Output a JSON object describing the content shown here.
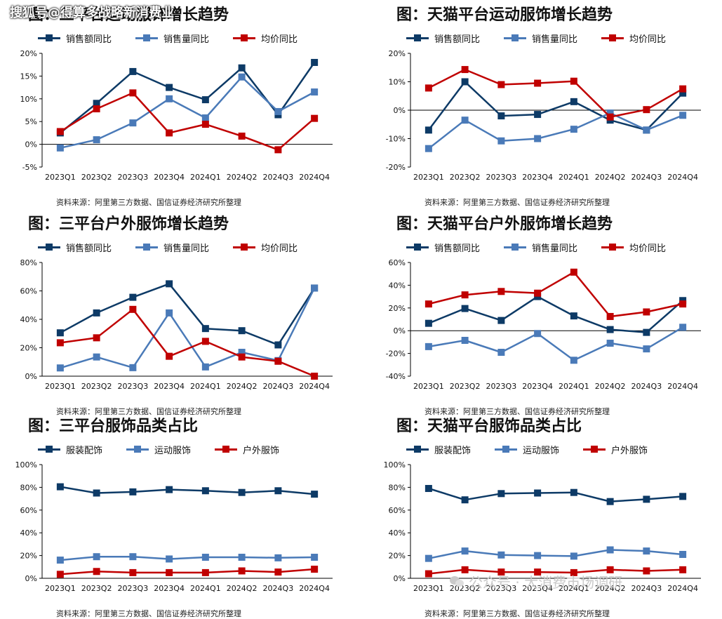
{
  "watermarks": {
    "top": "搜狐号@得算多战略新消费业",
    "bottom": "公众号 · 大消费市场调研"
  },
  "charts": [
    {
      "title": "图：三平台运动服饰增长趋势",
      "source": "资料来源：阿里第三方数据、国信证券经济研究所整理"
    },
    {
      "title": "图：天猫平台运动服饰增长趋势",
      "source": "资料来源：阿里第三方数据、国信证券经济研究所整理"
    },
    {
      "title": "图：三平台户外服饰增长趋势",
      "source": "资料来源：阿里第三方数据、国信证券经济研究所整理"
    },
    {
      "title": "图：天猫平台户外服饰增长趋势",
      "source": "资料来源：阿里第三方数据、国信证券经济研究所整理"
    },
    {
      "title": "图：三平台服饰品类占比",
      "source": "资料来源：阿里第三方数据、国信证券经济研究所整理"
    },
    {
      "title": "图：天猫平台服饰品类占比",
      "source": "资料来源：阿里第三方数据、国信证券经济研究所整理"
    }
  ],
  "chart_data": [
    {
      "type": "line",
      "title": "图：三平台运动服饰增长趋势",
      "categories": [
        "2023Q1",
        "2023Q2",
        "2023Q3",
        "2023Q4",
        "2024Q1",
        "2024Q2",
        "2024Q3",
        "2024Q4"
      ],
      "ylim": [
        -5,
        20
      ],
      "yticks": [
        -5,
        0,
        5,
        10,
        15,
        20
      ],
      "yunit": "%",
      "series": [
        {
          "name": "销售额同比",
          "color": "#0d3a66",
          "values": [
            2.5,
            9,
            16,
            12.5,
            9.8,
            16.8,
            6.5,
            18
          ]
        },
        {
          "name": "销售量同比",
          "color": "#4a7ab8",
          "values": [
            -0.8,
            1,
            4.7,
            10,
            5.8,
            14.8,
            7.2,
            11.5
          ]
        },
        {
          "name": "均价同比",
          "color": "#c00000",
          "values": [
            2.8,
            7.8,
            11.3,
            2.5,
            4.4,
            1.8,
            -1.2,
            5.7
          ]
        }
      ],
      "xlabel": "",
      "ylabel": ""
    },
    {
      "type": "line",
      "title": "图：天猫平台运动服饰增长趋势",
      "categories": [
        "2023Q1",
        "2023Q2",
        "2023Q3",
        "2023Q4",
        "2024Q1",
        "2024Q2",
        "2024Q3",
        "2024Q4"
      ],
      "ylim": [
        -20,
        20
      ],
      "yticks": [
        -20,
        -10,
        0,
        10,
        20
      ],
      "yunit": "%",
      "series": [
        {
          "name": "销售额同比",
          "color": "#0d3a66",
          "values": [
            -7,
            10,
            -2,
            -1.5,
            3,
            -3.5,
            -7,
            6
          ]
        },
        {
          "name": "销售量同比",
          "color": "#4a7ab8",
          "values": [
            -13.5,
            -3.5,
            -10.8,
            -10,
            -6.7,
            -1,
            -7,
            -1.8
          ]
        },
        {
          "name": "均价同比",
          "color": "#c00000",
          "values": [
            7.8,
            14.3,
            9,
            9.5,
            10.2,
            -2.4,
            0.2,
            7.5
          ]
        }
      ],
      "xlabel": "",
      "ylabel": ""
    },
    {
      "type": "line",
      "title": "图：三平台户外服饰增长趋势",
      "categories": [
        "2023Q1",
        "2023Q2",
        "2023Q3",
        "2023Q4",
        "2024Q1",
        "2024Q2",
        "2024Q3",
        "2024Q4"
      ],
      "ylim": [
        0,
        80
      ],
      "yticks": [
        0,
        20,
        40,
        60,
        80
      ],
      "yunit": "%",
      "series": [
        {
          "name": "销售额同比",
          "color": "#0d3a66",
          "values": [
            30.5,
            44.5,
            55.5,
            65,
            33.5,
            32,
            22,
            62
          ]
        },
        {
          "name": "销售量同比",
          "color": "#4a7ab8",
          "values": [
            5.8,
            13.5,
            6,
            44.5,
            6.5,
            16.8,
            11,
            62
          ]
        },
        {
          "name": "均价同比",
          "color": "#c00000",
          "values": [
            23.5,
            27,
            47,
            14,
            24.5,
            13.5,
            10.5,
            0
          ]
        }
      ],
      "xlabel": "",
      "ylabel": ""
    },
    {
      "type": "line",
      "title": "图：天猫平台户外服饰增长趋势",
      "categories": [
        "2023Q1",
        "2023Q2",
        "2023Q3",
        "2023Q4",
        "2024Q1",
        "2024Q2",
        "2024Q3",
        "2024Q4"
      ],
      "ylim": [
        -40,
        60
      ],
      "yticks": [
        -40,
        -20,
        0,
        20,
        40,
        60
      ],
      "yunit": "%",
      "series": [
        {
          "name": "销售额同比",
          "color": "#0d3a66",
          "values": [
            6.5,
            19.5,
            9,
            30,
            13,
            1,
            -1.5,
            26.5
          ]
        },
        {
          "name": "销售量同比",
          "color": "#4a7ab8",
          "values": [
            -14,
            -8.5,
            -19,
            -2.5,
            -26,
            -11,
            -16,
            3
          ]
        },
        {
          "name": "均价同比",
          "color": "#c00000",
          "values": [
            23.5,
            31.5,
            34.5,
            33,
            51.5,
            12.5,
            16.5,
            23.5
          ]
        }
      ],
      "xlabel": "",
      "ylabel": ""
    },
    {
      "type": "line",
      "title": "图：三平台服饰品类占比",
      "categories": [
        "2023Q1",
        "2023Q2",
        "2023Q3",
        "2023Q4",
        "2024Q1",
        "2024Q2",
        "2024Q3",
        "2024Q4"
      ],
      "ylim": [
        0,
        100
      ],
      "yticks": [
        0,
        20,
        40,
        60,
        80,
        100
      ],
      "yunit": "%",
      "series": [
        {
          "name": "服装配饰",
          "color": "#0d3a66",
          "values": [
            80.5,
            75,
            76,
            78,
            77,
            75.5,
            77,
            74
          ]
        },
        {
          "name": "运动服饰",
          "color": "#4a7ab8",
          "values": [
            16,
            19,
            19,
            17,
            18.5,
            18.5,
            18,
            18.5
          ]
        },
        {
          "name": "户外服饰",
          "color": "#c00000",
          "values": [
            3.5,
            6,
            5,
            5,
            5,
            6.5,
            5.5,
            8
          ]
        }
      ],
      "xlabel": "",
      "ylabel": ""
    },
    {
      "type": "line",
      "title": "图：天猫平台服饰品类占比",
      "categories": [
        "2023Q1",
        "2023Q2",
        "2023Q3",
        "2023Q4",
        "2024Q1",
        "2024Q2",
        "2024Q3",
        "2024Q4"
      ],
      "ylim": [
        0,
        100
      ],
      "yticks": [
        0,
        20,
        40,
        60,
        80,
        100
      ],
      "yunit": "%",
      "series": [
        {
          "name": "服装配饰",
          "color": "#0d3a66",
          "values": [
            79,
            69,
            74.5,
            75,
            75.5,
            67.5,
            69.5,
            72
          ]
        },
        {
          "name": "运动服饰",
          "color": "#4a7ab8",
          "values": [
            17.5,
            24,
            20.5,
            20,
            19.5,
            25,
            24,
            21
          ]
        },
        {
          "name": "户外服饰",
          "color": "#c00000",
          "values": [
            4,
            7.5,
            5.5,
            5.5,
            5,
            7.5,
            6.5,
            7.5
          ]
        }
      ],
      "xlabel": "",
      "ylabel": ""
    }
  ]
}
